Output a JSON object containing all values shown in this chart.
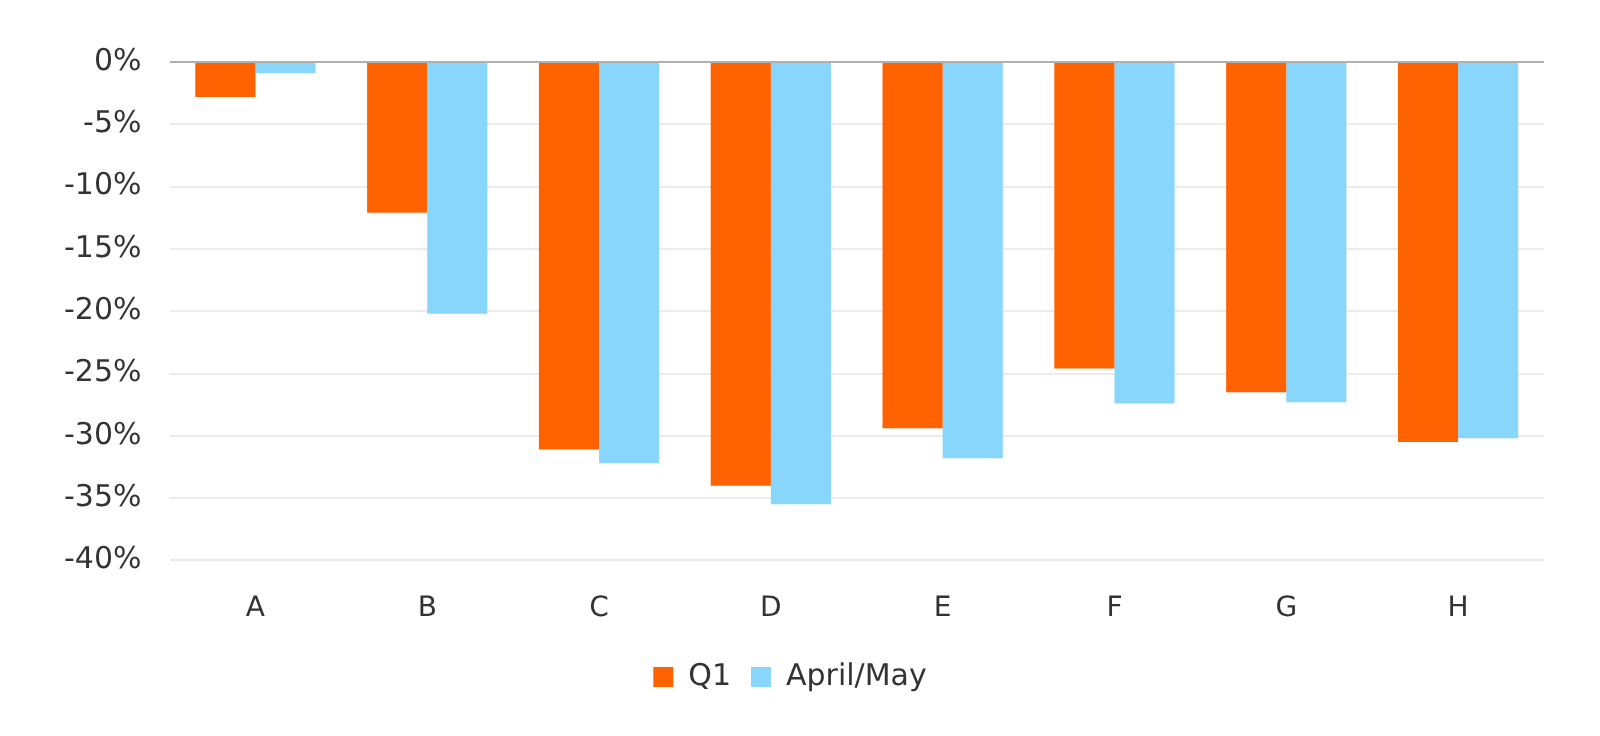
{
  "chart_data": {
    "type": "bar",
    "categories": [
      "A",
      "B",
      "C",
      "D",
      "E",
      "F",
      "G",
      "H"
    ],
    "series": [
      {
        "name": "Q1",
        "color": "#ff6200",
        "values": [
          -2.8,
          -12.1,
          -31.1,
          -34.0,
          -29.4,
          -24.6,
          -26.5,
          -30.5
        ]
      },
      {
        "name": "April/May",
        "color": "#89d6fd",
        "values": [
          -0.9,
          -20.2,
          -32.2,
          -35.5,
          -31.8,
          -27.4,
          -27.3,
          -30.2
        ]
      }
    ],
    "ylim": [
      -40,
      0
    ],
    "yticks": [
      {
        "value": 0,
        "label": "0%"
      },
      {
        "value": -5,
        "label": "-5%"
      },
      {
        "value": -10,
        "label": "-10%"
      },
      {
        "value": -15,
        "label": "-15%"
      },
      {
        "value": -20,
        "label": "-20%"
      },
      {
        "value": -25,
        "label": "-25%"
      },
      {
        "value": -30,
        "label": "-30%"
      },
      {
        "value": -35,
        "label": "-35%"
      },
      {
        "value": -40,
        "label": "-40%"
      }
    ],
    "grid": "y",
    "legend": "bottom"
  }
}
